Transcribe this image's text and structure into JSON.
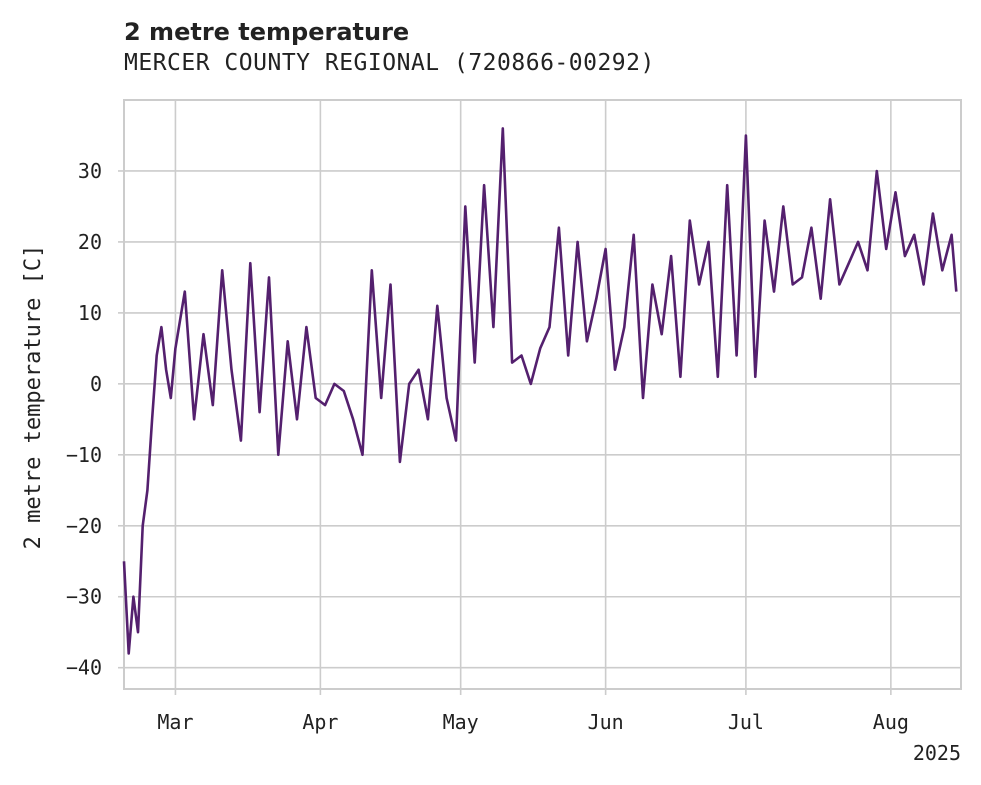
{
  "chart_data": {
    "type": "line",
    "title": "2 metre temperature",
    "subtitle": "MERCER COUNTY REGIONAL (720866-00292)",
    "ylabel": "2 metre temperature [C]",
    "xlabel": "",
    "x_year_label": "2025",
    "x_ticks": [
      {
        "label": "Mar",
        "date": "2025-03-01"
      },
      {
        "label": "Apr",
        "date": "2025-04-01"
      },
      {
        "label": "May",
        "date": "2025-05-01"
      },
      {
        "label": "Jun",
        "date": "2025-06-01"
      },
      {
        "label": "Jul",
        "date": "2025-07-01"
      },
      {
        "label": "Aug",
        "date": "2025-08-01"
      }
    ],
    "y_ticks": [
      30,
      20,
      10,
      0,
      -10,
      -20,
      -30,
      -40
    ],
    "xlim": [
      "2025-02-18",
      "2025-08-16"
    ],
    "ylim": [
      -43,
      40
    ],
    "grid": true,
    "line_color": "#54206e",
    "series": [
      {
        "x": [
          "2025-02-18",
          "2025-02-19",
          "2025-02-20",
          "2025-02-21",
          "2025-02-22",
          "2025-02-23",
          "2025-02-24",
          "2025-02-25",
          "2025-02-26",
          "2025-02-27",
          "2025-02-28",
          "2025-03-01",
          "2025-03-03",
          "2025-03-05",
          "2025-03-07",
          "2025-03-09",
          "2025-03-11",
          "2025-03-13",
          "2025-03-15",
          "2025-03-17",
          "2025-03-19",
          "2025-03-21",
          "2025-03-23",
          "2025-03-25",
          "2025-03-27",
          "2025-03-29",
          "2025-03-31",
          "2025-04-02",
          "2025-04-04",
          "2025-04-06",
          "2025-04-08",
          "2025-04-10",
          "2025-04-12",
          "2025-04-14",
          "2025-04-16",
          "2025-04-18",
          "2025-04-20",
          "2025-04-22",
          "2025-04-24",
          "2025-04-26",
          "2025-04-28",
          "2025-04-30",
          "2025-05-02",
          "2025-05-04",
          "2025-05-06",
          "2025-05-08",
          "2025-05-10",
          "2025-05-12",
          "2025-05-14",
          "2025-05-16",
          "2025-05-18",
          "2025-05-20",
          "2025-05-22",
          "2025-05-24",
          "2025-05-26",
          "2025-05-28",
          "2025-05-30",
          "2025-06-01",
          "2025-06-03",
          "2025-06-05",
          "2025-06-07",
          "2025-06-09",
          "2025-06-11",
          "2025-06-13",
          "2025-06-15",
          "2025-06-17",
          "2025-06-19",
          "2025-06-21",
          "2025-06-23",
          "2025-06-25",
          "2025-06-27",
          "2025-06-29",
          "2025-07-01",
          "2025-07-03",
          "2025-07-05",
          "2025-07-07",
          "2025-07-09",
          "2025-07-11",
          "2025-07-13",
          "2025-07-15",
          "2025-07-17",
          "2025-07-19",
          "2025-07-21",
          "2025-07-23",
          "2025-07-25",
          "2025-07-27",
          "2025-07-29",
          "2025-07-31",
          "2025-08-02",
          "2025-08-04",
          "2025-08-06",
          "2025-08-08",
          "2025-08-10",
          "2025-08-12",
          "2025-08-14",
          "2025-08-15"
        ],
        "y": [
          -25,
          -38,
          -30,
          -35,
          -20,
          -15,
          -5,
          4,
          8,
          2,
          -2,
          5,
          13,
          -5,
          7,
          -3,
          16,
          2,
          -8,
          17,
          -4,
          15,
          -10,
          6,
          -5,
          8,
          -2,
          -3,
          0,
          -1,
          -5,
          -10,
          16,
          -2,
          14,
          -11,
          0,
          2,
          -5,
          11,
          -2,
          -8,
          25,
          3,
          28,
          8,
          36,
          3,
          4,
          0,
          5,
          8,
          22,
          4,
          20,
          6,
          12,
          19,
          2,
          8,
          21,
          -2,
          14,
          7,
          18,
          1,
          23,
          14,
          20,
          1,
          28,
          4,
          35,
          1,
          23,
          13,
          25,
          14,
          15,
          22,
          12,
          26,
          14,
          17,
          20,
          16,
          30,
          19,
          27,
          18,
          21,
          14,
          24,
          16,
          21,
          13
        ]
      }
    ]
  }
}
